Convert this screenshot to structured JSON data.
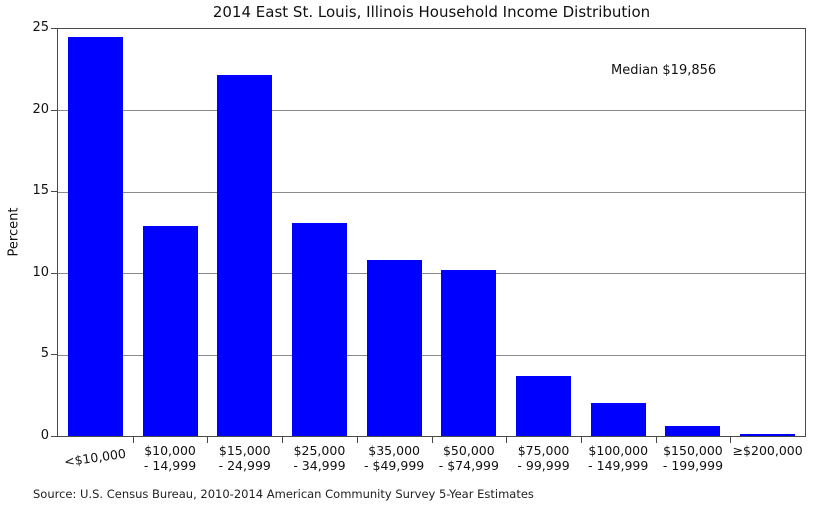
{
  "chart_data": {
    "type": "bar",
    "title": "2014 East St. Louis, Illinois Household Income Distribution",
    "ylabel": "Percent",
    "xlabel": "",
    "ylim": [
      0,
      25
    ],
    "yticks": [
      0,
      5,
      10,
      15,
      20,
      25
    ],
    "grid": "horizontal-gray-lines",
    "legend": "none",
    "bar_color": "#0000ff",
    "categories": [
      "<$10,000",
      "$10,000 - 14,999",
      "$15,000 - 24,999",
      "$25,000 - 34,999",
      "$35,000 - $49,999",
      "$50,000 - $74,999",
      "$75,000 - 99,999",
      "$100,000 - 149,999",
      "$150,000 - 199,999",
      "≥$200,000"
    ],
    "x_tick_label_lines": [
      [
        "<$10,000"
      ],
      [
        "$10,000",
        "- 14,999"
      ],
      [
        "$15,000",
        "- 24,999"
      ],
      [
        "$25,000",
        "- 34,999"
      ],
      [
        "$35,000",
        "- $49,999"
      ],
      [
        "$50,000",
        "- $74,999"
      ],
      [
        "$75,000",
        "- 99,999"
      ],
      [
        "$100,000",
        "- 149,999"
      ],
      [
        "$150,000",
        "- 199,999"
      ],
      [
        "≥$200,000"
      ]
    ],
    "values": [
      24.5,
      12.9,
      22.2,
      13.1,
      10.8,
      10.2,
      3.7,
      2.0,
      0.6,
      0.1
    ],
    "annotation": "Median $19,856",
    "source": "Source: U.S. Census Bureau, 2010-2014 American Community Survey 5-Year Estimates"
  }
}
